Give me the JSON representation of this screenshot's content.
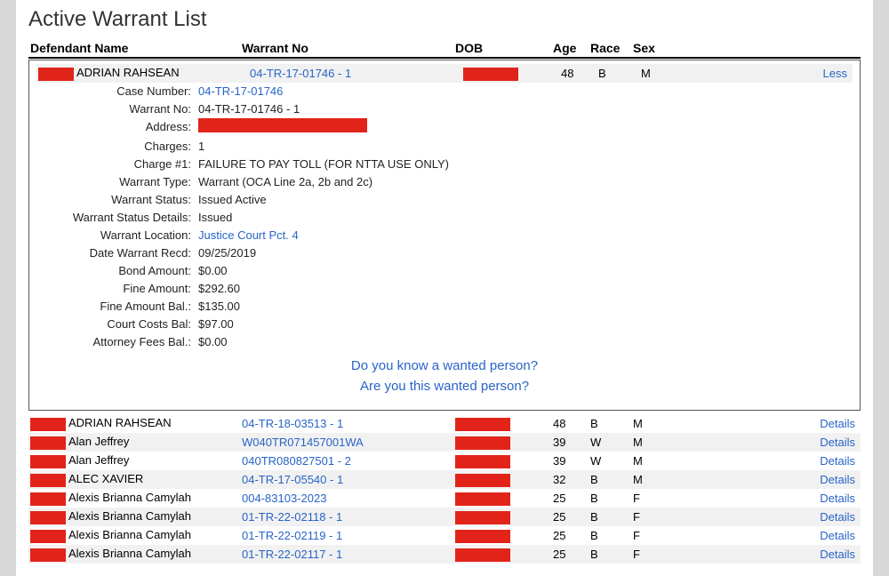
{
  "title": "Active Warrant List",
  "columns": {
    "name": "Defendant Name",
    "warrant": "Warrant No",
    "dob": "DOB",
    "age": "Age",
    "race": "Race",
    "sex": "Sex"
  },
  "expanded": {
    "row": {
      "name": "ADRIAN RAHSEAN",
      "warrant": "04-TR-17-01746 - 1",
      "age": "48",
      "race": "B",
      "sex": "M",
      "action": "Less"
    },
    "details": {
      "case_number_label": "Case Number:",
      "case_number": "04-TR-17-01746",
      "warrant_no_label": "Warrant No:",
      "warrant_no": "04-TR-17-01746 - 1",
      "address_label": "Address:",
      "charges_label": "Charges:",
      "charges": "1",
      "charge1_label": "Charge #1:",
      "charge1": "FAILURE TO PAY TOLL (FOR NTTA USE ONLY)",
      "warrant_type_label": "Warrant Type:",
      "warrant_type": "Warrant (OCA Line 2a, 2b and 2c)",
      "warrant_status_label": "Warrant Status:",
      "warrant_status": "Issued Active",
      "warrant_status_details_label": "Warrant Status Details:",
      "warrant_status_details": "Issued",
      "warrant_location_label": "Warrant Location:",
      "warrant_location": "Justice Court Pct. 4",
      "date_recd_label": "Date Warrant Recd:",
      "date_recd": "09/25/2019",
      "bond_label": "Bond Amount:",
      "bond": "$0.00",
      "fine_label": "Fine Amount:",
      "fine": "$292.60",
      "fine_bal_label": "Fine Amount Bal.:",
      "fine_bal": "$135.00",
      "court_costs_label": "Court Costs Bal:",
      "court_costs": "$97.00",
      "attorney_fees_label": "Attorney Fees Bal.:",
      "attorney_fees": "$0.00"
    },
    "prompts": {
      "know": "Do you know a wanted person?",
      "are_you": "Are you this wanted person?"
    }
  },
  "rows": [
    {
      "name": "ADRIAN RAHSEAN",
      "warrant": "04-TR-18-03513 - 1",
      "age": "48",
      "race": "B",
      "sex": "M",
      "action": "Details",
      "alt": false
    },
    {
      "name": "Alan Jeffrey",
      "warrant": "W040TR071457001WA",
      "age": "39",
      "race": "W",
      "sex": "M",
      "action": "Details",
      "alt": true
    },
    {
      "name": "Alan Jeffrey",
      "warrant": "040TR080827501 - 2",
      "age": "39",
      "race": "W",
      "sex": "M",
      "action": "Details",
      "alt": false
    },
    {
      "name": "ALEC XAVIER",
      "warrant": "04-TR-17-05540 - 1",
      "age": "32",
      "race": "B",
      "sex": "M",
      "action": "Details",
      "alt": true
    },
    {
      "name": "Alexis Brianna Camylah",
      "warrant": "004-83103-2023",
      "age": "25",
      "race": "B",
      "sex": "F",
      "action": "Details",
      "alt": false
    },
    {
      "name": "Alexis Brianna Camylah",
      "warrant": "01-TR-22-02118 - 1",
      "age": "25",
      "race": "B",
      "sex": "F",
      "action": "Details",
      "alt": true
    },
    {
      "name": "Alexis Brianna Camylah",
      "warrant": "01-TR-22-02119 - 1",
      "age": "25",
      "race": "B",
      "sex": "F",
      "action": "Details",
      "alt": false
    },
    {
      "name": "Alexis Brianna Camylah",
      "warrant": "01-TR-22-02117 - 1",
      "age": "25",
      "race": "B",
      "sex": "F",
      "action": "Details",
      "alt": true
    }
  ]
}
